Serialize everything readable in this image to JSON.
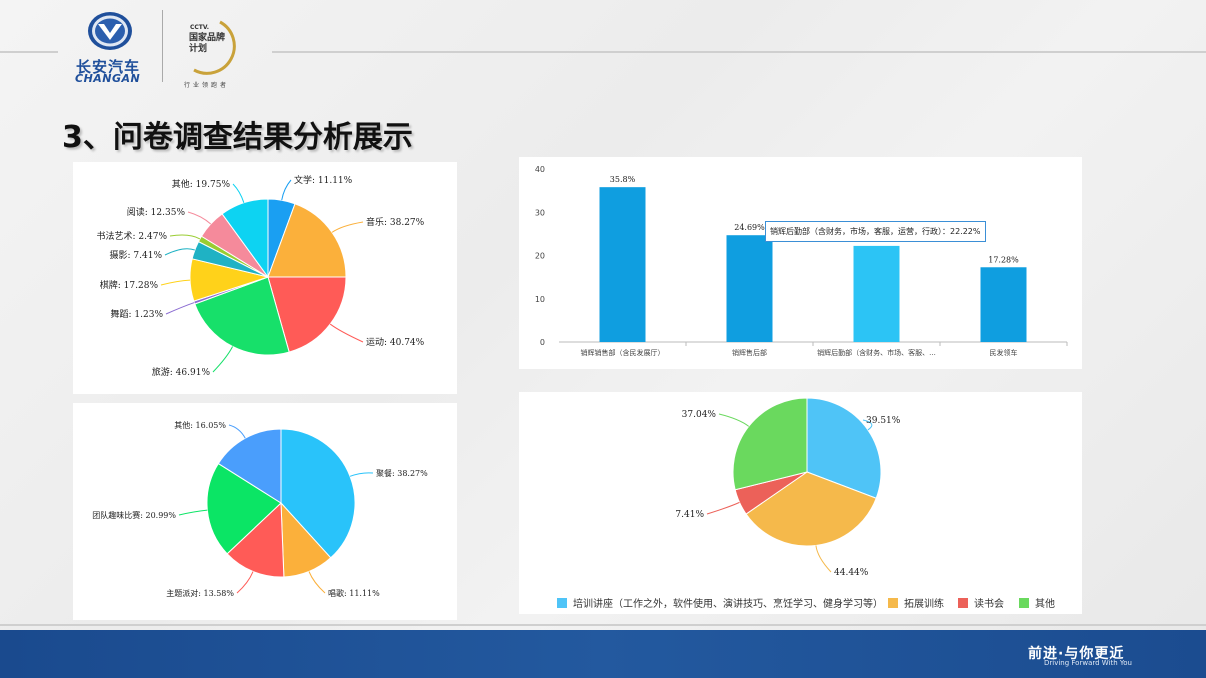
{
  "header": {
    "logo_cn": "长安汽车",
    "logo_en": "CHANGAN",
    "cctv_small": "CCTV.",
    "cctv_title": "国家品牌计划",
    "cctv_sub": "行业领跑者",
    "page_title": "3、问卷调查结果分析展示"
  },
  "footer": {
    "slogan": "前进·与你更近",
    "slogan_en": "Driving Forward With You"
  },
  "colors": {
    "blue_bar": "#0f9ee0",
    "light_bar": "#2cc4f5",
    "footer": "#1f5299"
  },
  "chart_data": [
    {
      "type": "pie",
      "id": "hobbies",
      "categories": [
        "文学",
        "音乐",
        "运动",
        "旅游",
        "舞蹈",
        "棋牌",
        "摄影",
        "书法艺术",
        "阅读",
        "其他"
      ],
      "labels": [
        "文学: 11.11%",
        "音乐: 38.27%",
        "运动: 40.74%",
        "旅游: 46.91%",
        "舞蹈: 1.23%",
        "棋牌: 17.28%",
        "摄影: 7.41%",
        "书法艺术: 2.47%",
        "阅读: 12.35%",
        "其他: 19.75%"
      ],
      "values": [
        11.11,
        38.27,
        40.74,
        46.91,
        1.23,
        17.28,
        7.41,
        2.47,
        12.35,
        19.75
      ],
      "colors": [
        "#1a9ff2",
        "#fbb03b",
        "#ff5b57",
        "#17e06a",
        "#8a6bd1",
        "#ffd21a",
        "#1fb2c4",
        "#9acd32",
        "#f58a9b",
        "#0dd3f2"
      ]
    },
    {
      "type": "bar",
      "id": "departments",
      "categories": [
        "销辉销售部（含民发展厅）",
        "销辉售后部",
        "销辉后勤部（含财务、市场、客服、...",
        "民发领车"
      ],
      "values": [
        35.8,
        24.69,
        22.22,
        17.28
      ],
      "value_labels": [
        "35.8%",
        "24.69%",
        "22.22%",
        "17.28%"
      ],
      "ylim": [
        0,
        40
      ],
      "yticks": [
        "0",
        "10",
        "20",
        "30",
        "40"
      ],
      "colors": [
        "#0f9ee0",
        "#0f9ee0",
        "#2cc4f5",
        "#0f9ee0"
      ],
      "tooltip": "销辉后勤部（含财务，市场，客服，运营，行政）：22.22%"
    },
    {
      "type": "pie",
      "id": "activities",
      "categories": [
        "聚餐",
        "唱歌",
        "主题派对",
        "团队趣味比赛",
        "其他"
      ],
      "labels": [
        "聚餐: 38.27%",
        "唱歌: 11.11%",
        "主题派对: 13.58%",
        "团队趣味比赛: 20.99%",
        "其他: 16.05%"
      ],
      "values": [
        38.27,
        11.11,
        13.58,
        20.99,
        16.05
      ],
      "colors": [
        "#29c3fa",
        "#fbb03b",
        "#ff5b57",
        "#0be565",
        "#4a9efc"
      ]
    },
    {
      "type": "pie",
      "id": "training",
      "categories": [
        "培训讲座（工作之外，软件使用、演讲技巧、烹饪学习、健身学习等）",
        "拓展训练",
        "读书会",
        "其他"
      ],
      "labels": [
        "39.51%",
        "44.44%",
        "7.41%",
        "37.04%"
      ],
      "values": [
        39.51,
        44.44,
        7.41,
        37.04
      ],
      "colors": [
        "#4fc4f7",
        "#f5b94b",
        "#ec6159",
        "#6ad95e"
      ]
    }
  ]
}
